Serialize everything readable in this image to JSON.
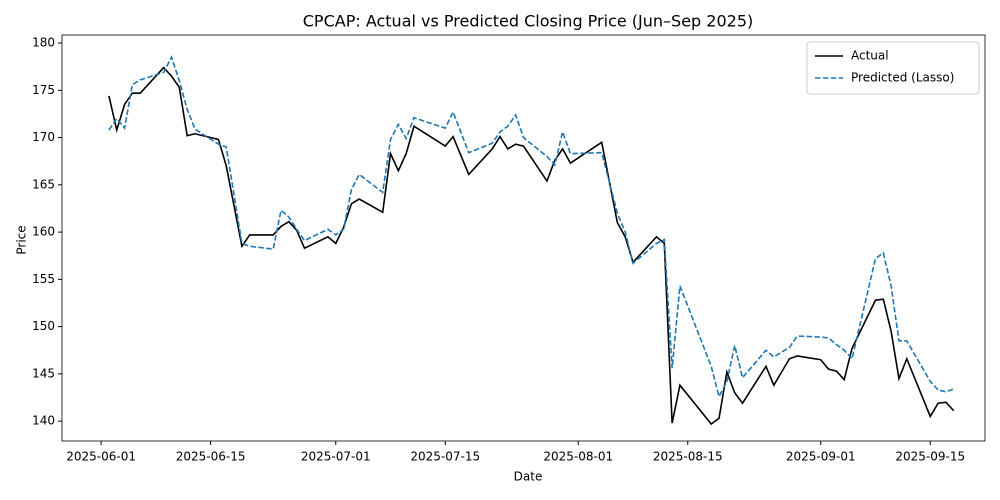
{
  "chart_data": {
    "type": "line",
    "title": "CPCAP: Actual vs Predicted Closing Price (Jun–Sep 2025)",
    "x_label": "Date",
    "y_label": "Price",
    "x": [
      "2025-06-02",
      "2025-06-03",
      "2025-06-04",
      "2025-06-05",
      "2025-06-06",
      "2025-06-09",
      "2025-06-10",
      "2025-06-11",
      "2025-06-12",
      "2025-06-13",
      "2025-06-16",
      "2025-06-17",
      "2025-06-19",
      "2025-06-20",
      "2025-06-23",
      "2025-06-24",
      "2025-06-25",
      "2025-06-26",
      "2025-06-27",
      "2025-06-30",
      "2025-07-01",
      "2025-07-02",
      "2025-07-03",
      "2025-07-04",
      "2025-07-07",
      "2025-07-08",
      "2025-07-09",
      "2025-07-10",
      "2025-07-11",
      "2025-07-15",
      "2025-07-16",
      "2025-07-18",
      "2025-07-21",
      "2025-07-22",
      "2025-07-23",
      "2025-07-24",
      "2025-07-25",
      "2025-07-28",
      "2025-07-29",
      "2025-07-30",
      "2025-07-31",
      "2025-08-04",
      "2025-08-06",
      "2025-08-07",
      "2025-08-08",
      "2025-08-11",
      "2025-08-12",
      "2025-08-13",
      "2025-08-14",
      "2025-08-18",
      "2025-08-19",
      "2025-08-20",
      "2025-08-21",
      "2025-08-22",
      "2025-08-25",
      "2025-08-26",
      "2025-08-28",
      "2025-08-29",
      "2025-09-01",
      "2025-09-02",
      "2025-09-03",
      "2025-09-04",
      "2025-09-05",
      "2025-09-08",
      "2025-09-09",
      "2025-09-10",
      "2025-09-11",
      "2025-09-12",
      "2025-09-15",
      "2025-09-16",
      "2025-09-17",
      "2025-09-18"
    ],
    "series": [
      {
        "name": "Actual",
        "color": "#000000",
        "dash": false,
        "values": [
          174.4,
          170.8,
          173.5,
          174.7,
          174.7,
          177.4,
          176.5,
          175.3,
          170.2,
          170.4,
          169.8,
          167,
          158.5,
          159.7,
          159.7,
          160.6,
          161.1,
          160.2,
          158.3,
          159.5,
          158.8,
          160.5,
          163,
          163.5,
          162.1,
          168.3,
          166.5,
          168.3,
          171.2,
          169.1,
          170.1,
          166.1,
          168.8,
          170.1,
          168.8,
          169.3,
          169.1,
          165.4,
          167.6,
          168.8,
          167.3,
          169.5,
          161,
          159.5,
          156.8,
          159.5,
          158.8,
          139.8,
          143.8,
          139.7,
          140.3,
          145.2,
          143,
          141.9,
          145.8,
          143.8,
          146.6,
          146.9,
          146.5,
          145.5,
          145.3,
          144.4,
          147.7,
          152.8,
          152.9,
          149.5,
          144.5,
          146.6,
          140.5,
          141.9,
          142,
          141.1
        ]
      },
      {
        "name": "Predicted (Lasso)",
        "color": "#1f77b4",
        "dash": true,
        "values": [
          170.8,
          172,
          171,
          175.6,
          176.1,
          176.9,
          178.5,
          176,
          173,
          170.9,
          169.3,
          169,
          158.8,
          158.5,
          158.2,
          162.3,
          161.6,
          160.3,
          159.1,
          160.3,
          159.7,
          160.3,
          164.5,
          166.1,
          164.2,
          169.8,
          171.4,
          169.9,
          172.1,
          171,
          172.7,
          168.4,
          169.4,
          170.6,
          171.2,
          172.4,
          170,
          168,
          167.1,
          170.6,
          168.3,
          168.4,
          162,
          160,
          156.7,
          158.8,
          159.2,
          145.6,
          154.3,
          145.8,
          142.6,
          144.2,
          148,
          144.6,
          147.5,
          146.8,
          147.8,
          149,
          148.9,
          148.8,
          148.1,
          147.5,
          146.6,
          157.2,
          157.8,
          154.3,
          148.5,
          148.5,
          144.2,
          143.3,
          143.1,
          143.4
        ]
      }
    ],
    "xlim": [
      "2025-05-27",
      "2025-09-22"
    ],
    "xticks": [
      "2025-06-01",
      "2025-06-15",
      "2025-07-01",
      "2025-07-15",
      "2025-08-01",
      "2025-08-15",
      "2025-09-01",
      "2025-09-15"
    ],
    "ylim": [
      137.9,
      180.85
    ],
    "yticks": [
      140,
      145,
      150,
      155,
      160,
      165,
      170,
      175,
      180
    ],
    "grid": false,
    "legend": "upper right"
  }
}
